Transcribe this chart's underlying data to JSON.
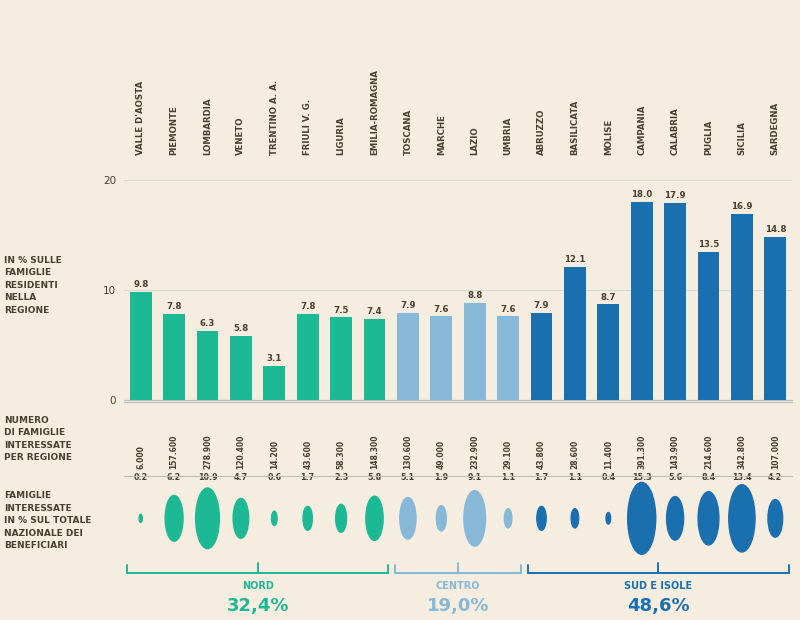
{
  "regions": [
    "VALLE D'AOSTA",
    "PIEMONTE",
    "LOMBARDIA",
    "VENETO",
    "TRENTINO A. A.",
    "FRIULI V. G.",
    "LIGURIA",
    "EMILIA-ROMAGNA",
    "TOSCANA",
    "MARCHE",
    "LAZIO",
    "UMBRIA",
    "ABRUZZO",
    "BASILICATA",
    "MOLISE",
    "CAMPANIA",
    "CALABRIA",
    "PUGLIA",
    "SICILIA",
    "SARDEGNA"
  ],
  "bar_values": [
    9.8,
    7.8,
    6.3,
    5.8,
    3.1,
    7.8,
    7.5,
    7.4,
    7.9,
    7.6,
    8.8,
    7.6,
    7.9,
    12.1,
    8.7,
    18.0,
    17.9,
    13.5,
    16.9,
    14.8
  ],
  "families_count": [
    "6.000",
    "157.600",
    "278.900",
    "120.400",
    "14.200",
    "43.600",
    "58.300",
    "148.300",
    "130.600",
    "49.000",
    "232.900",
    "29.100",
    "43.800",
    "28.600",
    "11.400",
    "391.300",
    "143.900",
    "214.600",
    "342.800",
    "107.000"
  ],
  "pct_national": [
    0.2,
    6.2,
    10.9,
    4.7,
    0.6,
    1.7,
    2.3,
    5.8,
    5.1,
    1.9,
    9.1,
    1.1,
    1.7,
    1.1,
    0.4,
    15.3,
    5.6,
    8.4,
    13.4,
    4.2
  ],
  "bar_colors_nord": "#1db894",
  "bar_colors_centro": "#88b8d8",
  "bar_colors_sud": "#1a6faf",
  "bg_color": "#f5ede0",
  "nord_color": "#1db894",
  "centro_color": "#88b8d8",
  "sud_color": "#1a6faf",
  "text_color": "#4a3f2f",
  "nord_label": "NORD",
  "centro_label": "CENTRO",
  "sud_label": "SUD E ISOLE",
  "nord_pct": "32,4%",
  "centro_pct": "19,0%",
  "sud_pct": "48,6%"
}
